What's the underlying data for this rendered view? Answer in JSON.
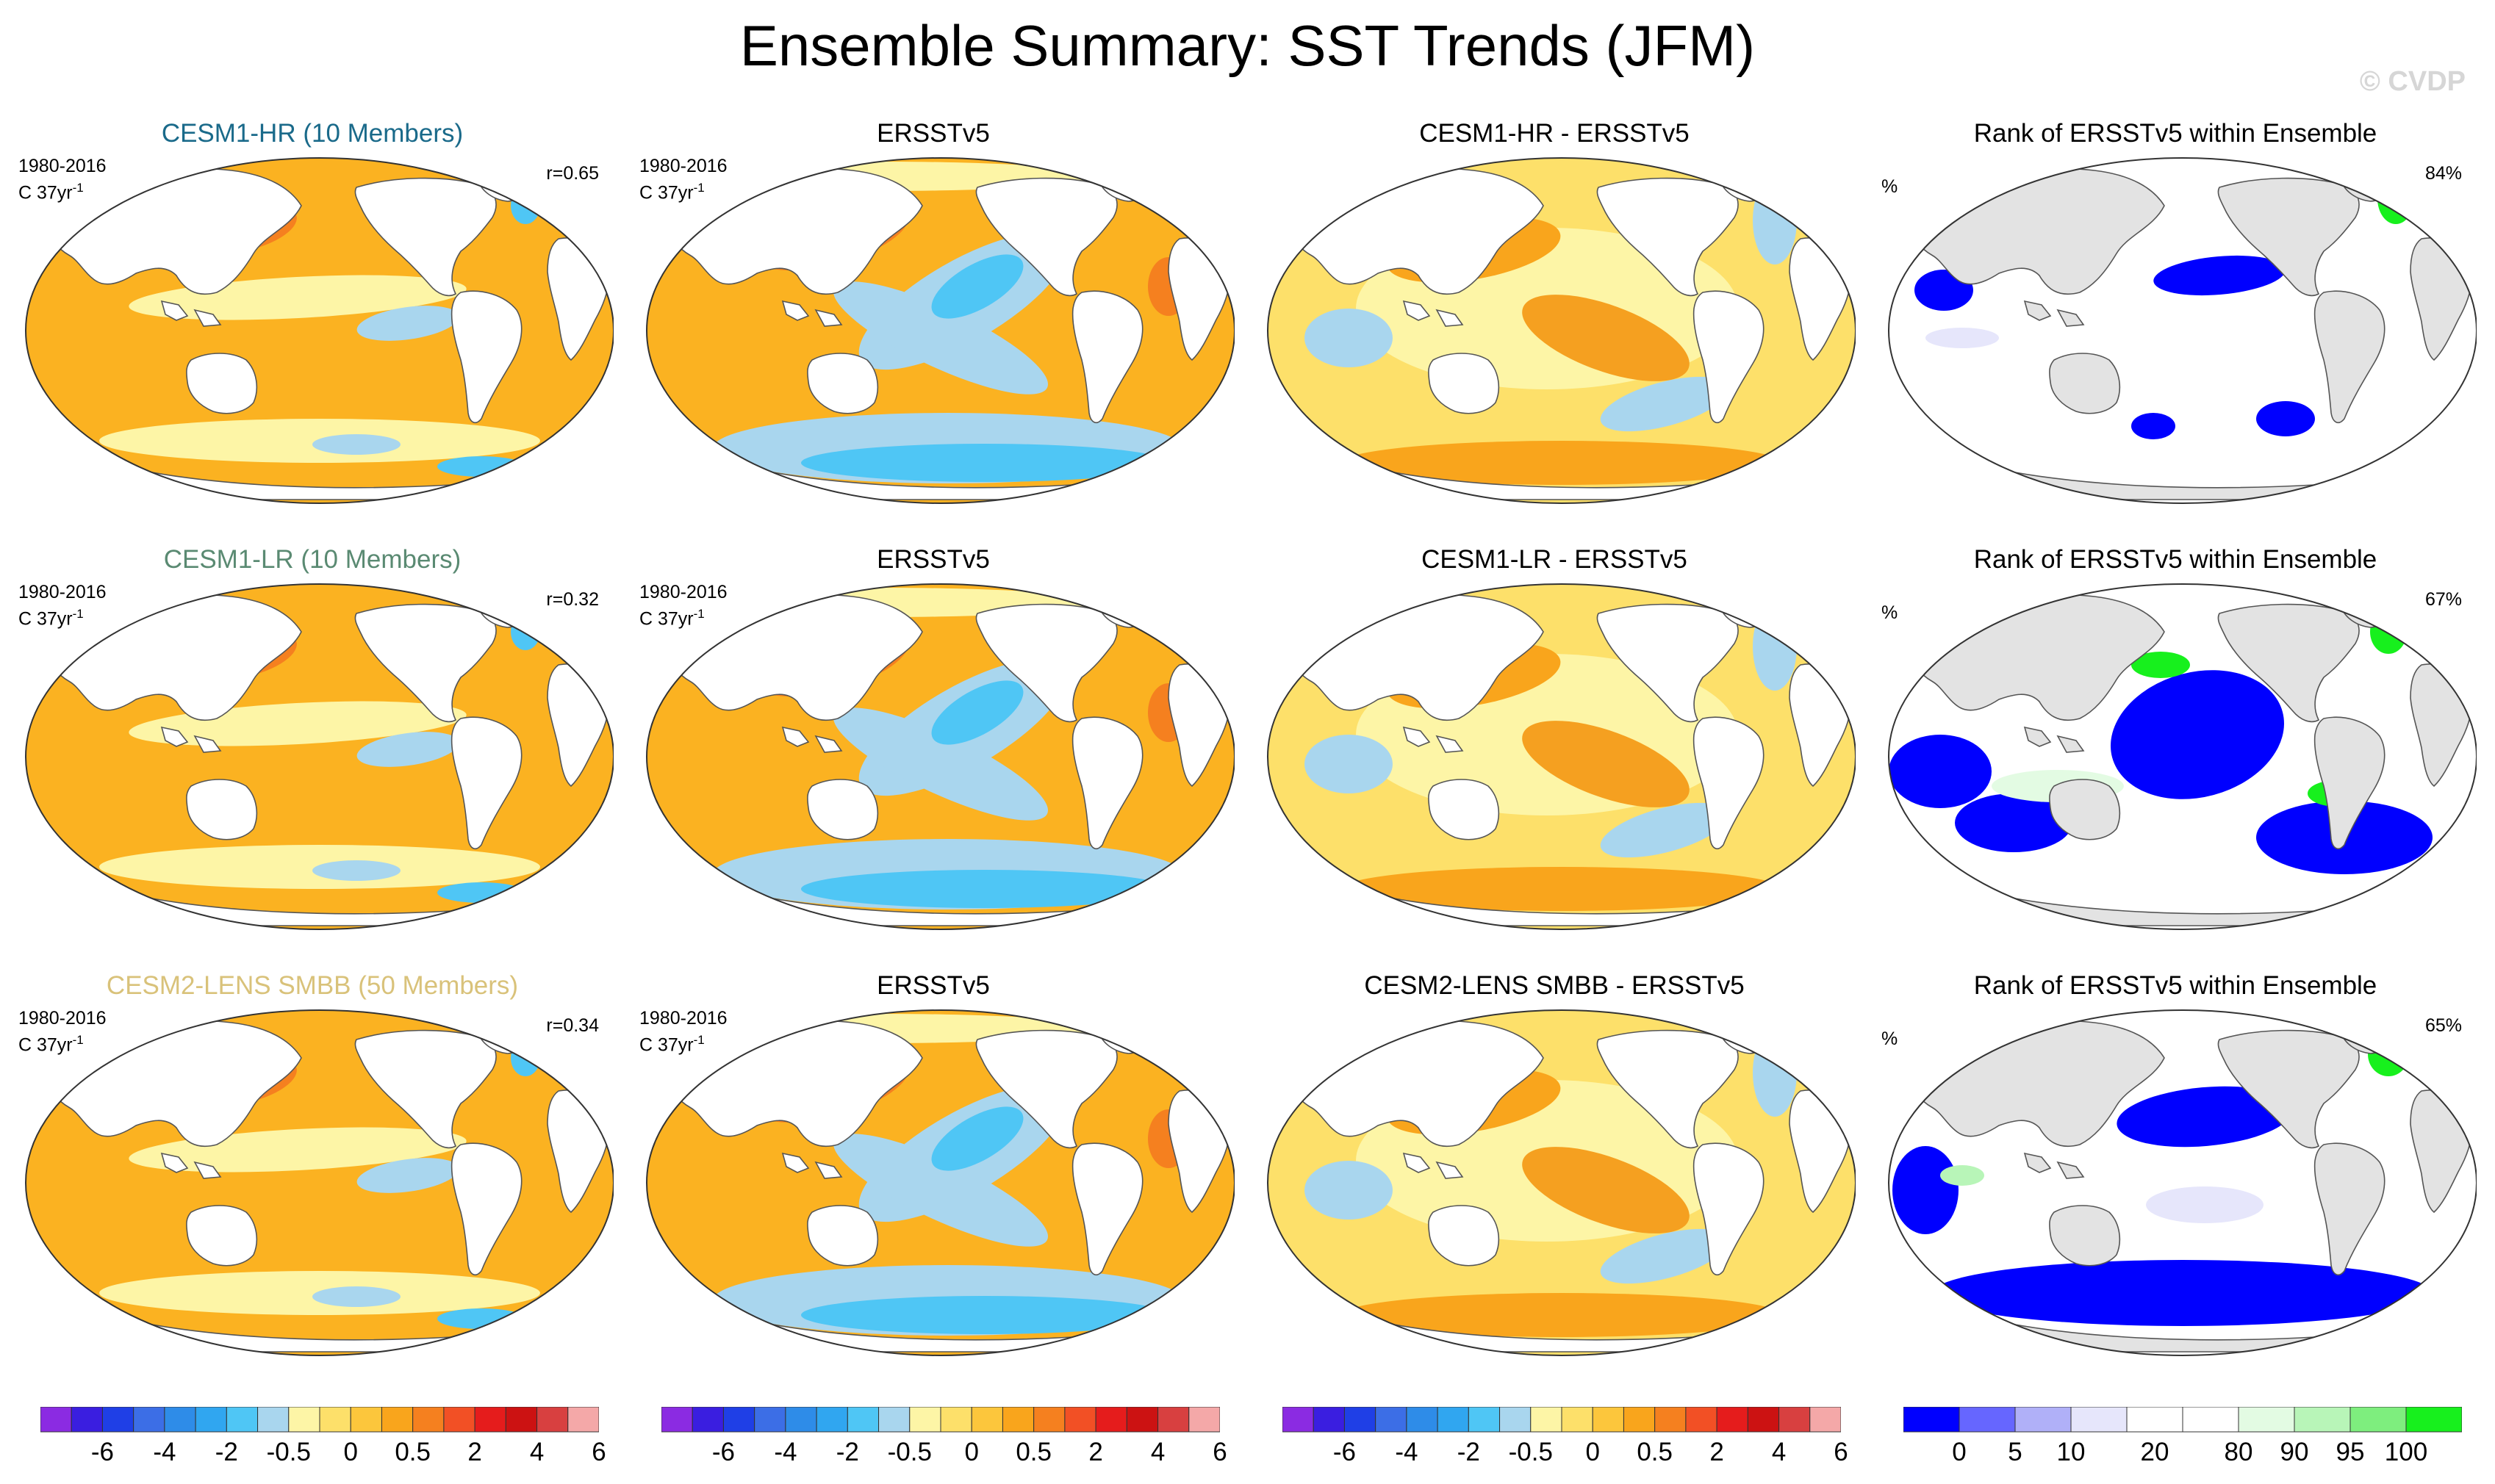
{
  "page": {
    "title": "Ensemble Summary: SST Trends (JFM)",
    "copyright": "© CVDP"
  },
  "colors": {
    "ocean": "#fbb221",
    "land": "#ffffff",
    "land_gray": "#e3e3e3",
    "rank_white": "#ffffff",
    "rank_blue": "#0000ff",
    "rank_green": "#17f01d"
  },
  "chart_data": [
    {
      "type": "heatmap",
      "title": "CESM1-HR (10 Members)",
      "title_color": "#1a6a8a",
      "period": "1980-2016",
      "units": "C 37yr",
      "units_sup": "-1",
      "stat": "r=0.65",
      "style": "model"
    },
    {
      "type": "heatmap",
      "title": "ERSSTv5",
      "title_color": "#000000",
      "period": "1980-2016",
      "units": "C 37yr",
      "units_sup": "-1",
      "stat": "",
      "style": "obs"
    },
    {
      "type": "heatmap",
      "title": "CESM1-HR - ERSSTv5",
      "title_color": "#000000",
      "period": "",
      "units": "",
      "units_sup": "",
      "stat": "",
      "style": "diff"
    },
    {
      "type": "heatmap",
      "title": "Rank of ERSSTv5 within Ensemble",
      "title_color": "#000000",
      "period": "",
      "units": "%",
      "units_sup": "",
      "stat": "84%",
      "style": "rank"
    },
    {
      "type": "heatmap",
      "title": "CESM1-LR (10 Members)",
      "title_color": "#5a8a72",
      "period": "1980-2016",
      "units": "C 37yr",
      "units_sup": "-1",
      "stat": "r=0.32",
      "style": "model"
    },
    {
      "type": "heatmap",
      "title": "ERSSTv5",
      "title_color": "#000000",
      "period": "1980-2016",
      "units": "C 37yr",
      "units_sup": "-1",
      "stat": "",
      "style": "obs"
    },
    {
      "type": "heatmap",
      "title": "CESM1-LR - ERSSTv5",
      "title_color": "#000000",
      "period": "",
      "units": "",
      "units_sup": "",
      "stat": "",
      "style": "diff"
    },
    {
      "type": "heatmap",
      "title": "Rank of ERSSTv5 within Ensemble",
      "title_color": "#000000",
      "period": "",
      "units": "%",
      "units_sup": "",
      "stat": "67%",
      "style": "rank"
    },
    {
      "type": "heatmap",
      "title": "CESM2-LENS SMBB (50 Members)",
      "title_color": "#d9c27a",
      "period": "1980-2016",
      "units": "C 37yr",
      "units_sup": "-1",
      "stat": "r=0.34",
      "style": "model"
    },
    {
      "type": "heatmap",
      "title": "ERSSTv5",
      "title_color": "#000000",
      "period": "1980-2016",
      "units": "C 37yr",
      "units_sup": "-1",
      "stat": "",
      "style": "obs"
    },
    {
      "type": "heatmap",
      "title": "CESM2-LENS SMBB - ERSSTv5",
      "title_color": "#000000",
      "period": "",
      "units": "",
      "units_sup": "",
      "stat": "",
      "style": "diff"
    },
    {
      "type": "heatmap",
      "title": "Rank of ERSSTv5 within Ensemble",
      "title_color": "#000000",
      "period": "",
      "units": "%",
      "units_sup": "",
      "stat": "65%",
      "style": "rank"
    }
  ],
  "colorbars": {
    "trend": {
      "colors": [
        "#8b2be2",
        "#3a1ee0",
        "#1f3fe6",
        "#3c6ee6",
        "#2e8ce8",
        "#30a6f0",
        "#4fc6f5",
        "#a9d6ee",
        "#fdf5a6",
        "#fde06a",
        "#fcc63c",
        "#f9a51c",
        "#f5801f",
        "#f25025",
        "#e51c1c",
        "#cc1212",
        "#d84040",
        "#f4a8a8"
      ],
      "labels": [
        "-6",
        "-4",
        "-2",
        "-0.5",
        "0",
        "0.5",
        "2",
        "4",
        "6"
      ]
    },
    "rank": {
      "colors": [
        "#0000ff",
        "#6666ff",
        "#b0b0f8",
        "#e6e6fb",
        "#ffffff",
        "#ffffff",
        "#e3fbe3",
        "#b8f5b8",
        "#7eee7e",
        "#17f01d"
      ],
      "labels": [
        "0",
        "5",
        "10",
        "20",
        "80",
        "90",
        "95",
        "100"
      ]
    }
  }
}
